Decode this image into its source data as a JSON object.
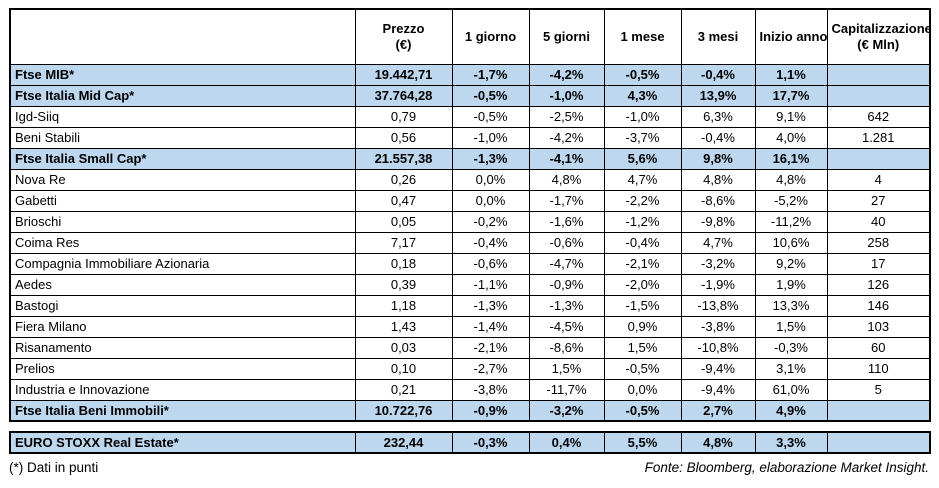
{
  "chart_data": {
    "type": "table",
    "columns": [
      {
        "lines": [
          "Prezzo",
          "(€)"
        ]
      },
      {
        "lines": [
          "1 giorno"
        ]
      },
      {
        "lines": [
          "5 giorni"
        ]
      },
      {
        "lines": [
          "1 mese"
        ]
      },
      {
        "lines": [
          "3 mesi"
        ]
      },
      {
        "lines": [
          "Inizio anno"
        ]
      },
      {
        "lines": [
          "Capitalizzazione",
          "(€ Mln)"
        ]
      }
    ],
    "rows": [
      {
        "name": "Ftse MIB*",
        "style": "index",
        "values": [
          "19.442,71",
          "-1,7%",
          "-4,2%",
          "-0,5%",
          "-0,4%",
          "1,1%",
          ""
        ]
      },
      {
        "name": "Ftse Italia Mid Cap*",
        "style": "index",
        "values": [
          "37.764,28",
          "-0,5%",
          "-1,0%",
          "4,3%",
          "13,9%",
          "17,7%",
          ""
        ]
      },
      {
        "name": "Igd-Siiq",
        "style": "stock",
        "values": [
          "0,79",
          "-0,5%",
          "-2,5%",
          "-1,0%",
          "6,3%",
          "9,1%",
          "642"
        ]
      },
      {
        "name": "Beni Stabili",
        "style": "stock",
        "values": [
          "0,56",
          "-1,0%",
          "-4,2%",
          "-3,7%",
          "-0,4%",
          "4,0%",
          "1.281"
        ]
      },
      {
        "name": "Ftse Italia Small Cap*",
        "style": "index",
        "values": [
          "21.557,38",
          "-1,3%",
          "-4,1%",
          "5,6%",
          "9,8%",
          "16,1%",
          ""
        ]
      },
      {
        "name": "Nova Re",
        "style": "stock",
        "values": [
          "0,26",
          "0,0%",
          "4,8%",
          "4,7%",
          "4,8%",
          "4,8%",
          "4"
        ]
      },
      {
        "name": "Gabetti",
        "style": "stock",
        "values": [
          "0,47",
          "0,0%",
          "-1,7%",
          "-2,2%",
          "-8,6%",
          "-5,2%",
          "27"
        ]
      },
      {
        "name": "Brioschi",
        "style": "stock",
        "values": [
          "0,05",
          "-0,2%",
          "-1,6%",
          "-1,2%",
          "-9,8%",
          "-11,2%",
          "40"
        ]
      },
      {
        "name": "Coima Res",
        "style": "stock",
        "values": [
          "7,17",
          "-0,4%",
          "-0,6%",
          "-0,4%",
          "4,7%",
          "10,6%",
          "258"
        ]
      },
      {
        "name": "Compagnia Immobiliare Azionaria",
        "style": "stock",
        "values": [
          "0,18",
          "-0,6%",
          "-4,7%",
          "-2,1%",
          "-3,2%",
          "9,2%",
          "17"
        ]
      },
      {
        "name": "Aedes",
        "style": "stock",
        "values": [
          "0,39",
          "-1,1%",
          "-0,9%",
          "-2,0%",
          "-1,9%",
          "1,9%",
          "126"
        ]
      },
      {
        "name": "Bastogi",
        "style": "stock",
        "values": [
          "1,18",
          "-1,3%",
          "-1,3%",
          "-1,5%",
          "-13,8%",
          "13,3%",
          "146"
        ]
      },
      {
        "name": "Fiera Milano",
        "style": "stock",
        "values": [
          "1,43",
          "-1,4%",
          "-4,5%",
          "0,9%",
          "-3,8%",
          "1,5%",
          "103"
        ]
      },
      {
        "name": "Risanamento",
        "style": "stock",
        "values": [
          "0,03",
          "-2,1%",
          "-8,6%",
          "1,5%",
          "-10,8%",
          "-0,3%",
          "60"
        ]
      },
      {
        "name": "Prelios",
        "style": "stock",
        "values": [
          "0,10",
          "-2,7%",
          "1,5%",
          "-0,5%",
          "-9,4%",
          "3,1%",
          "110"
        ]
      },
      {
        "name": "Industria e Innovazione",
        "style": "stock",
        "values": [
          "0,21",
          "-3,8%",
          "-11,7%",
          "0,0%",
          "-9,4%",
          "61,0%",
          "5"
        ]
      },
      {
        "name": "Ftse Italia Beni Immobili*",
        "style": "index",
        "values": [
          "10.722,76",
          "-0,9%",
          "-3,2%",
          "-0,5%",
          "2,7%",
          "4,9%",
          ""
        ]
      }
    ],
    "separate_rows": [
      {
        "name": "EURO STOXX Real Estate*",
        "style": "index",
        "values": [
          "232,44",
          "-0,3%",
          "0,4%",
          "5,5%",
          "4,8%",
          "3,3%",
          ""
        ]
      }
    ]
  },
  "footnote": "(*) Dati in punti",
  "source": "Fonte: Bloomberg, elaborazione Market Insight.",
  "colors": {
    "index_row_bg": "#BDD7EE",
    "border": "#000000",
    "text": "#000000",
    "background": "#FFFFFF"
  }
}
